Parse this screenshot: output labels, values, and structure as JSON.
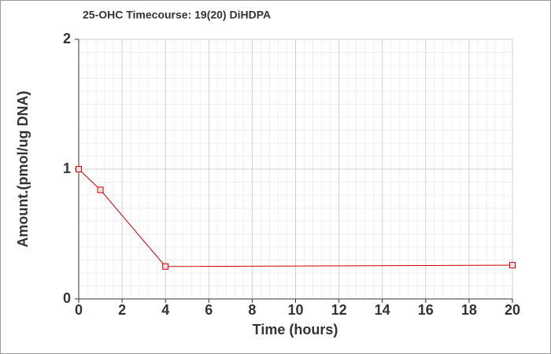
{
  "chart_data": {
    "type": "line",
    "title": "25-OHC Timecourse: 19(20) DiHDPA",
    "x_label": "Time (hours)",
    "y_label": "Amount.(pmol/ug DNA)",
    "series": [
      {
        "name": "19(20) DiHDPA",
        "color": "#cc0000",
        "x": [
          0,
          1,
          4,
          20
        ],
        "values": [
          1.0,
          0.84,
          0.25,
          0.26
        ]
      }
    ],
    "xlim": [
      0,
      20
    ],
    "xticks": [
      0,
      2,
      4,
      6,
      8,
      10,
      12,
      14,
      16,
      18,
      20
    ],
    "ylim": [
      0,
      2
    ],
    "yticks": [
      0,
      1,
      2
    ],
    "grid": true
  }
}
